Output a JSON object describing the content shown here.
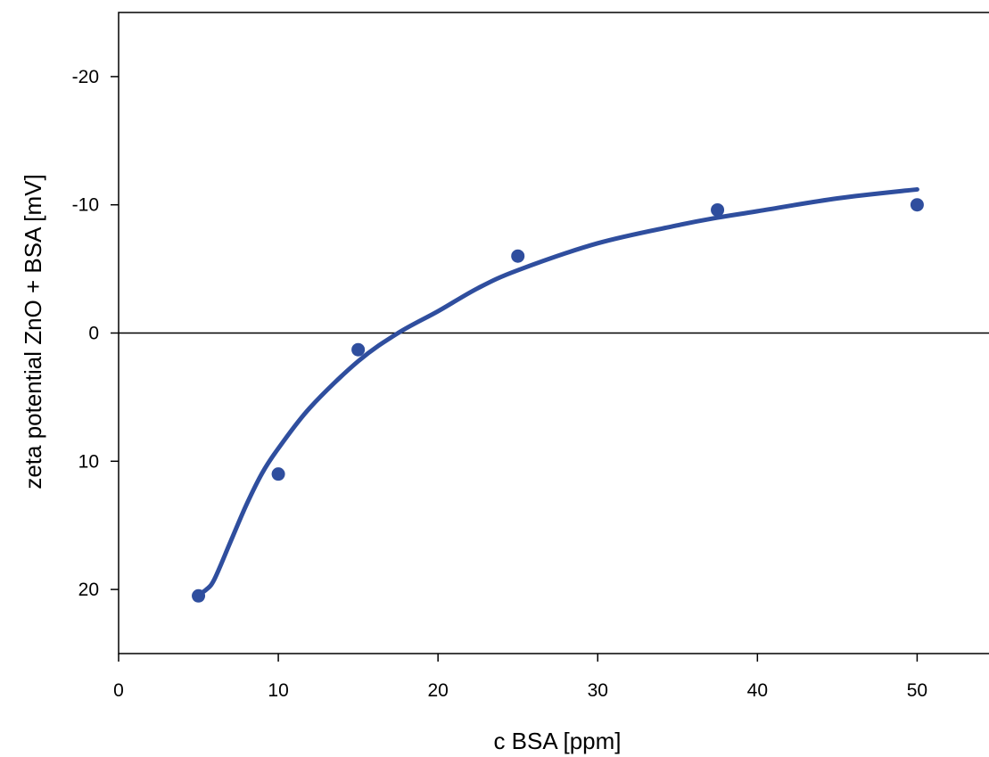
{
  "chart_data": {
    "type": "scatter",
    "xlabel": "c BSA [ppm]",
    "ylabel": "zeta potential ZnO + BSA [mV]",
    "xlim": [
      0,
      54.5
    ],
    "ylim": [
      25,
      -25
    ],
    "y_axis_inverted": true,
    "x_ticks": [
      0,
      10,
      20,
      30,
      40,
      50
    ],
    "y_ticks": [
      -20,
      -10,
      0,
      10,
      20
    ],
    "reference_line_y": 0,
    "grid": false,
    "legend": "none",
    "series": [
      {
        "kind": "points",
        "x": [
          5,
          10,
          15,
          25,
          37.5,
          50
        ],
        "y": [
          20.5,
          11,
          1.3,
          -6,
          -9.6,
          -10
        ]
      },
      {
        "kind": "fit-curve",
        "x": [
          5,
          5.5,
          6,
          7,
          8,
          9,
          10,
          12,
          15,
          17.5,
          20,
          22.5,
          25,
          30,
          35,
          37.5,
          40,
          45,
          50
        ],
        "y": [
          20.4,
          20.0,
          19.2,
          16.3,
          13.4,
          10.9,
          9.0,
          5.8,
          2.2,
          0.0,
          -1.7,
          -3.5,
          -4.9,
          -7.0,
          -8.4,
          -9.0,
          -9.5,
          -10.5,
          -11.2
        ]
      }
    ],
    "colors": {
      "series": "#2f4e9e",
      "axis": "#000000"
    }
  }
}
